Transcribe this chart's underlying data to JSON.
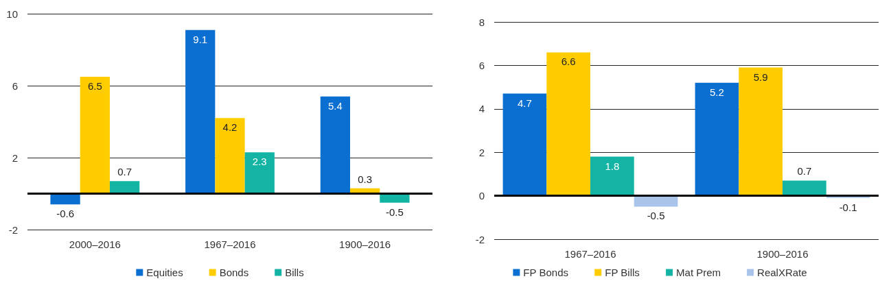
{
  "chart_data": [
    {
      "type": "bar",
      "categories": [
        "2000–2016",
        "1967–2016",
        "1900–2016"
      ],
      "series": [
        {
          "name": "Equities",
          "color": "#0a6fd0",
          "values": [
            -0.6,
            9.1,
            5.4
          ]
        },
        {
          "name": "Bonds",
          "color": "#ffcc00",
          "values": [
            6.5,
            4.2,
            0.3
          ]
        },
        {
          "name": "Bills",
          "color": "#14b4a4",
          "values": [
            0.7,
            2.3,
            -0.5
          ]
        }
      ],
      "ylim": [
        -2,
        10
      ],
      "yticks": [
        -2,
        2,
        6,
        10
      ],
      "grid": "y",
      "legend": "bottom",
      "data_labels": true,
      "ref_lines": [
        {
          "axis": "y",
          "value": 0,
          "color": "#000000"
        }
      ]
    },
    {
      "type": "bar",
      "categories": [
        "1967–2016",
        "1900–2016"
      ],
      "series": [
        {
          "name": "FP Bonds",
          "color": "#0a6fd0",
          "values": [
            4.7,
            5.2
          ]
        },
        {
          "name": "FP Bills",
          "color": "#ffcc00",
          "values": [
            6.6,
            5.9
          ]
        },
        {
          "name": "Mat Prem",
          "color": "#14b4a4",
          "values": [
            1.8,
            0.7
          ]
        },
        {
          "name": "RealXRate",
          "color": "#a9c4ea",
          "values": [
            -0.5,
            -0.1
          ]
        }
      ],
      "ylim": [
        -2,
        8
      ],
      "yticks": [
        -2,
        0,
        2,
        4,
        6,
        8
      ],
      "grid": "y",
      "legend": "bottom",
      "data_labels": true,
      "ref_lines": [
        {
          "axis": "y",
          "value": 0,
          "color": "#000000"
        }
      ]
    }
  ]
}
